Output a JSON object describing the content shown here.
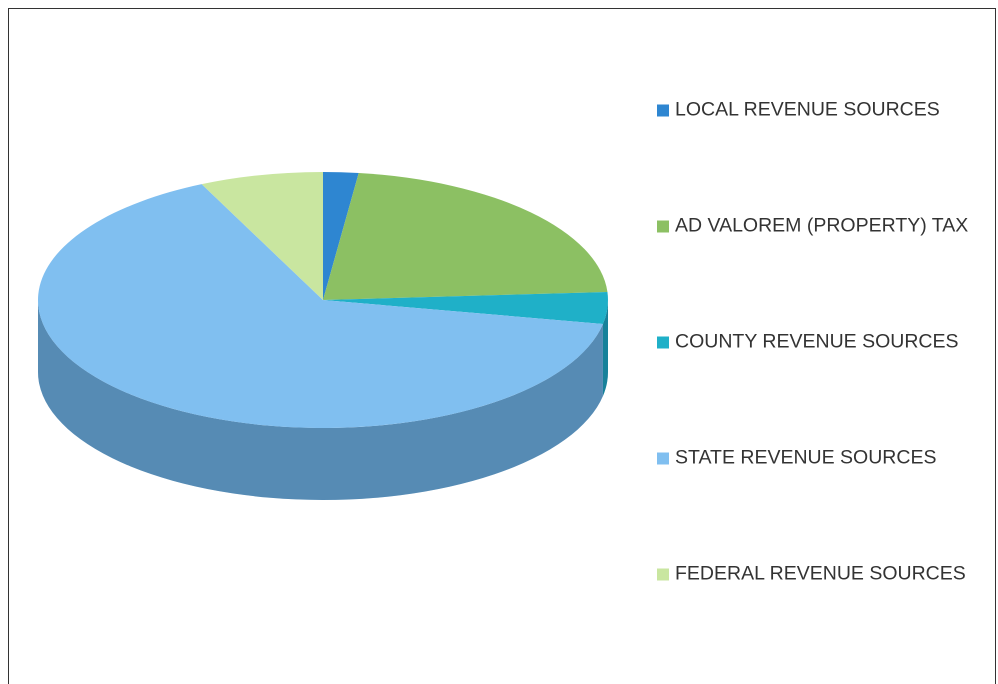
{
  "chart_data": {
    "type": "pie",
    "categories": [
      "LOCAL REVENUE SOURCES",
      "AD VALOREM (PROPERTY) TAX",
      "COUNTY REVENUE SOURCES",
      "STATE REVENUE SOURCES",
      "FEDERAL REVENUE SOURCES"
    ],
    "values": [
      2,
      22,
      4,
      65,
      7
    ],
    "colors": [
      "#2e86d1",
      "#8cc063",
      "#1fb0c8",
      "#80bff0",
      "#c9e6a0"
    ],
    "legend": "right"
  }
}
